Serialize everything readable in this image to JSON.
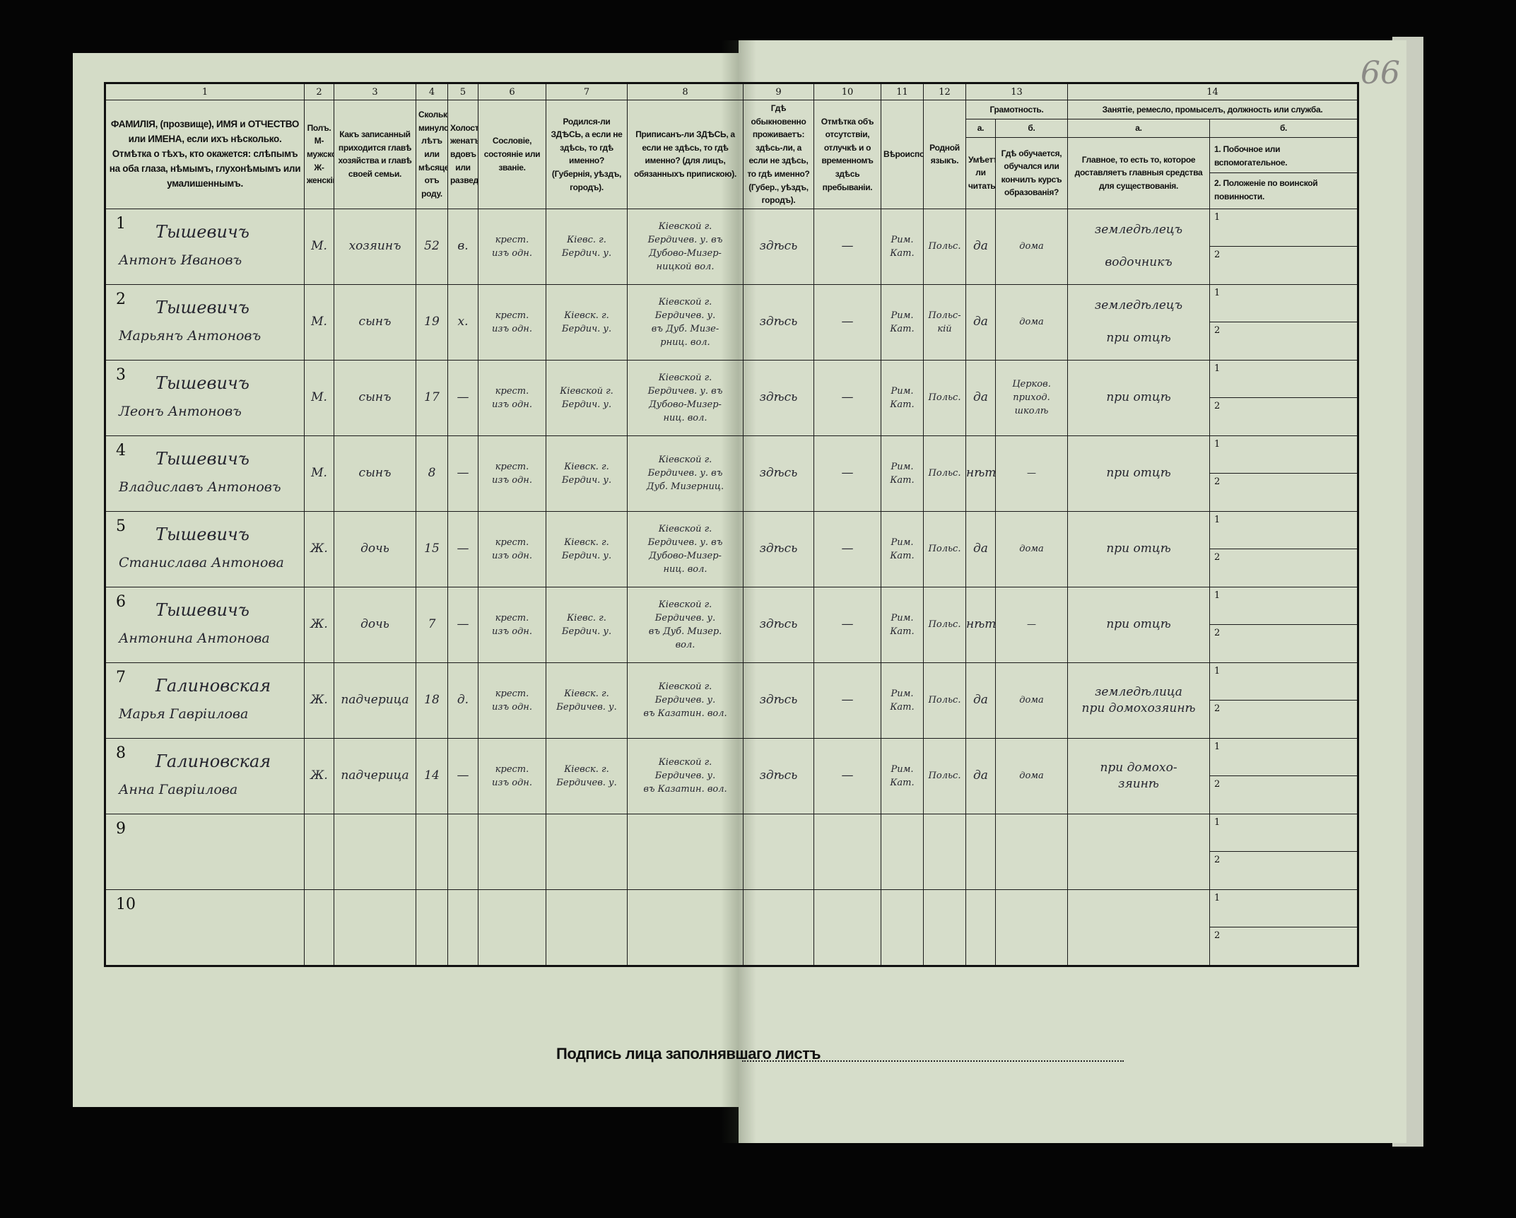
{
  "page_number": "66",
  "column_numbers": [
    "1",
    "2",
    "3",
    "4",
    "5",
    "6",
    "7",
    "8",
    "9",
    "10",
    "11",
    "12",
    "13",
    "14"
  ],
  "headers": {
    "c1": "ФАМИЛІЯ, (прозвище), ИМЯ и ОТЧЕСТВО или ИМЕНА, если ихъ нѣсколько. Отмѣтка о тѣхъ, кто окажется: слѣпымъ на оба глаза, нѣмымъ, глухонѣмымъ или умалишеннымъ.",
    "c2": "Полъ. М-мужской. Ж-женскій.",
    "c3": "Какъ записанный приходится главѣ хозяйства и главѣ своей семьи.",
    "c4": "Сколько минуло лѣтъ или мѣсяцевъ отъ роду.",
    "c5": "Холостъ, женатъ, вдовъ или разведенъ.",
    "c6": "Сословіе, состояніе или званіе.",
    "c7": "Родился-ли ЗДѢСЬ, а если не здѣсь, то гдѣ именно? (Губернія, уѣздъ, городъ).",
    "c8": "Приписанъ-ли ЗДѢСЬ, а если не здѣсь, то гдѣ именно? (для лицъ, обязанныхъ припискою).",
    "c9": "Гдѣ обыкновенно проживаетъ: здѣсь-ли, а если не здѣсь, то гдѣ именно? (Губер., уѣздъ, городъ).",
    "c10": "Отмѣтка объ отсутствіи, отлучкѣ и о временномъ здѣсь пребываніи.",
    "c11": "Вѣроисповѣданіе.",
    "c12": "Родной языкъ.",
    "c13": "Грамотность.",
    "c13a": "а.",
    "c13a_text": "Умѣетъ-ли читать?",
    "c13b": "б.",
    "c13b_text": "Гдѣ обучается, обучался или кончилъ курсъ образованія?",
    "c14": "Занятіе, ремесло, промыселъ, должность или служба.",
    "c14a": "а.",
    "c14a_text": "Главное, то есть то, которое доставляетъ главныя средства для существованія.",
    "c14b": "б.",
    "c14b_1": "1. Побочное или вспомогательное.",
    "c14b_2": "2. Положеніе по воинской повинности."
  },
  "rows": [
    {
      "num": "1",
      "surname": "Тышевичъ",
      "given": "Антонъ Ивановъ",
      "sex": "М.",
      "relation": "хозяинъ",
      "age": "52",
      "marital": "в.",
      "estate": "крест.\nизъ одн.",
      "birthplace": "Кіевс. г.\nБердич. у.",
      "registered": "Кіевской г.\nБердичев. у. въ\nДубово-Мизер-\nницкой вол.",
      "residence": "здѣсь",
      "absence": "—",
      "religion": "Рим.\nКат.",
      "language": "Польс.",
      "literate": "да",
      "education": "дома",
      "occupation": "земледѣлецъ\n\nводочникъ",
      "side1": "1",
      "side2": "2"
    },
    {
      "num": "2",
      "surname": "Тышевичъ",
      "given": "Марьянъ Антоновъ",
      "sex": "М.",
      "relation": "сынъ",
      "age": "19",
      "marital": "х.",
      "estate": "крест.\nизъ одн.",
      "birthplace": "Кіевск. г.\nБердич. у.",
      "registered": "Кіевской г.\nБердичев. у.\nвъ Дуб. Мизе-\nрниц. вол.",
      "residence": "здѣсь",
      "absence": "—",
      "religion": "Рим.\nКат.",
      "language": "Польс-\nкій",
      "literate": "да",
      "education": "дома",
      "occupation": "земледѣлецъ\n\nпри отцѣ",
      "side1": "1",
      "side2": "2"
    },
    {
      "num": "3",
      "surname": "Тышевичъ",
      "given": "Леонъ Антоновъ",
      "sex": "М.",
      "relation": "сынъ",
      "age": "17",
      "marital": "—",
      "estate": "крест.\nизъ одн.",
      "birthplace": "Кіевской г.\nБердич. у.",
      "registered": "Кіевской г.\nБердичев. у. въ\nДубово-Мизер-\nниц. вол.",
      "residence": "здѣсь",
      "absence": "—",
      "religion": "Рим.\nКат.",
      "language": "Польс.",
      "literate": "да",
      "education": "Церков.\nприход.\nшколѣ",
      "occupation": "при отцѣ",
      "side1": "1",
      "side2": "2"
    },
    {
      "num": "4",
      "surname": "Тышевичъ",
      "given": "Владиславъ Антоновъ",
      "sex": "М.",
      "relation": "сынъ",
      "age": "8",
      "marital": "—",
      "estate": "крест.\nизъ одн.",
      "birthplace": "Кіевск. г.\nБердич. у.",
      "registered": "Кіевской г.\nБердичев. у. въ\nДуб. Мизерниц.",
      "residence": "здѣсь",
      "absence": "—",
      "religion": "Рим.\nКат.",
      "language": "Польс.",
      "literate": "нѣтъ",
      "education": "—",
      "occupation": "при отцѣ",
      "side1": "1",
      "side2": "2"
    },
    {
      "num": "5",
      "surname": "Тышевичъ",
      "given": "Станислава Антонова",
      "sex": "Ж.",
      "relation": "дочь",
      "age": "15",
      "marital": "—",
      "estate": "крест.\nизъ одн.",
      "birthplace": "Кіевск. г.\nБердич. у.",
      "registered": "Кіевской г.\nБердичев. у. въ\nДубово-Мизер-\nниц. вол.",
      "residence": "здѣсь",
      "absence": "—",
      "religion": "Рим.\nКат.",
      "language": "Польс.",
      "literate": "да",
      "education": "дома",
      "occupation": "при отцѣ",
      "side1": "1",
      "side2": "2"
    },
    {
      "num": "6",
      "surname": "Тышевичъ",
      "given": "Антонина Антонова",
      "sex": "Ж.",
      "relation": "дочь",
      "age": "7",
      "marital": "—",
      "estate": "крест.\nизъ одн.",
      "birthplace": "Кіевс. г.\nБердич. у.",
      "registered": "Кіевской г.\nБердичев. у.\nвъ Дуб. Мизер.\nвол.",
      "residence": "здѣсь",
      "absence": "—",
      "religion": "Рим.\nКат.",
      "language": "Польс.",
      "literate": "нѣтъ",
      "education": "—",
      "occupation": "при отцѣ",
      "side1": "1",
      "side2": "2"
    },
    {
      "num": "7",
      "surname": "Галиновская",
      "given": "Марья Гавріилова",
      "sex": "Ж.",
      "relation": "падчерица",
      "age": "18",
      "marital": "д.",
      "estate": "крест.\nизъ одн.",
      "birthplace": "Кіевск. г.\nБердичев. у.",
      "registered": "Кіевской г.\nБердичев. у.\nвъ Казатин. вол.",
      "residence": "здѣсь",
      "absence": "—",
      "religion": "Рим.\nКат.",
      "language": "Польс.",
      "literate": "да",
      "education": "дома",
      "occupation": "земледѣлица\nпри домохозяинѣ",
      "side1": "1",
      "side2": "2"
    },
    {
      "num": "8",
      "surname": "Галиновская",
      "given": "Анна Гавріилова",
      "sex": "Ж.",
      "relation": "падчерица",
      "age": "14",
      "marital": "—",
      "estate": "крест.\nизъ одн.",
      "birthplace": "Кіевск. г.\nБердичев. у.",
      "registered": "Кіевской г.\nБердичев. у.\nвъ Казатин. вол.",
      "residence": "здѣсь",
      "absence": "—",
      "religion": "Рим.\nКат.",
      "language": "Польс.",
      "literate": "да",
      "education": "дома",
      "occupation": "при домохо-\nзяинѣ",
      "side1": "1",
      "side2": "2"
    },
    {
      "num": "9",
      "side1": "1",
      "side2": "2"
    },
    {
      "num": "10",
      "side1": "1",
      "side2": "2"
    }
  ],
  "signature_label": "Подпись лица заполнявшаго листъ",
  "colors": {
    "background": "#050505",
    "paper": "#d4dcc7",
    "ink": "#24242e",
    "print": "#111111"
  }
}
